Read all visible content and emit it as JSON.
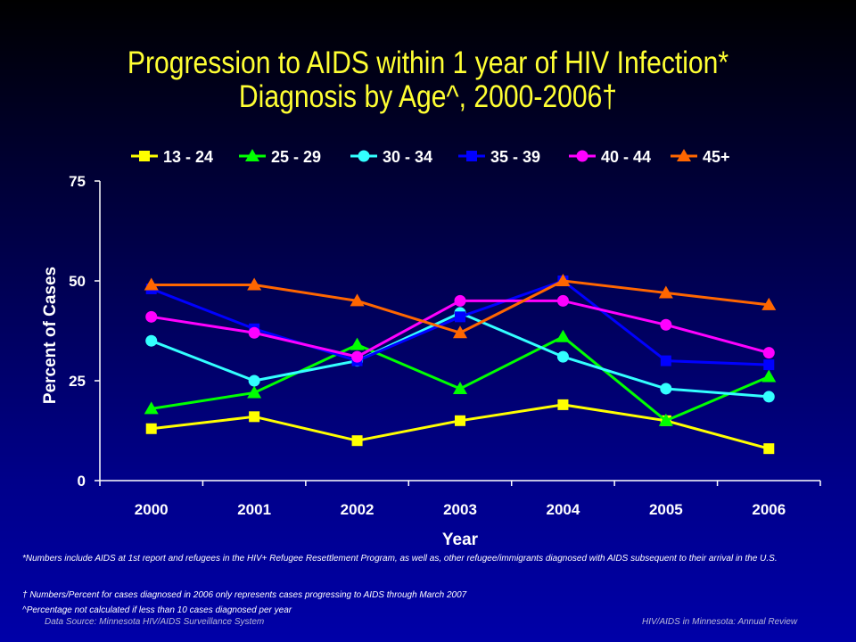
{
  "title": {
    "line1": "Progression to AIDS within 1 year of HIV Infection*",
    "line2": "Diagnosis by Age^, 2000-2006†"
  },
  "chart_data": {
    "type": "line",
    "xlabel": "Year",
    "ylabel": "Percent of Cases",
    "ylim": [
      0,
      75
    ],
    "yticks": [
      0,
      25,
      50,
      75
    ],
    "categories": [
      "2000",
      "2001",
      "2002",
      "2003",
      "2004",
      "2005",
      "2006"
    ],
    "grid": false,
    "legend_position": "top",
    "series": [
      {
        "name": "13 - 24",
        "color": "#ffff00",
        "marker": "square",
        "values": [
          13,
          16,
          10,
          15,
          19,
          15,
          8
        ]
      },
      {
        "name": "25 - 29",
        "color": "#00ff00",
        "marker": "triangle",
        "values": [
          18,
          22,
          34,
          23,
          36,
          15,
          26
        ]
      },
      {
        "name": "30 - 34",
        "color": "#33ffff",
        "marker": "circle",
        "values": [
          35,
          25,
          30,
          42,
          31,
          23,
          21
        ]
      },
      {
        "name": "35 - 39",
        "color": "#0000ff",
        "marker": "square",
        "values": [
          48,
          38,
          30,
          41,
          50,
          30,
          29
        ]
      },
      {
        "name": "40 - 44",
        "color": "#ff00ff",
        "marker": "circle",
        "values": [
          41,
          37,
          31,
          45,
          45,
          39,
          32
        ]
      },
      {
        "name": "45+",
        "color": "#ff6600",
        "marker": "triangle",
        "values": [
          49,
          49,
          45,
          37,
          50,
          47,
          44
        ]
      }
    ]
  },
  "footnotes": {
    "note1": "*Numbers include AIDS at 1st report and refugees in the HIV+ Refugee Resettlement Program, as well as, other refugee/immigrants diagnosed with AIDS subsequent to their arrival in the U.S.",
    "note2": "† Numbers/Percent for cases diagnosed in 2006 only represents cases progressing to AIDS through March 2007",
    "note3": "^Percentage not calculated if less than 10 cases diagnosed per year"
  },
  "source": {
    "left": "Data Source: Minnesota HIV/AIDS Surveillance System",
    "right": "HIV/AIDS in Minnesota: Annual Review"
  }
}
